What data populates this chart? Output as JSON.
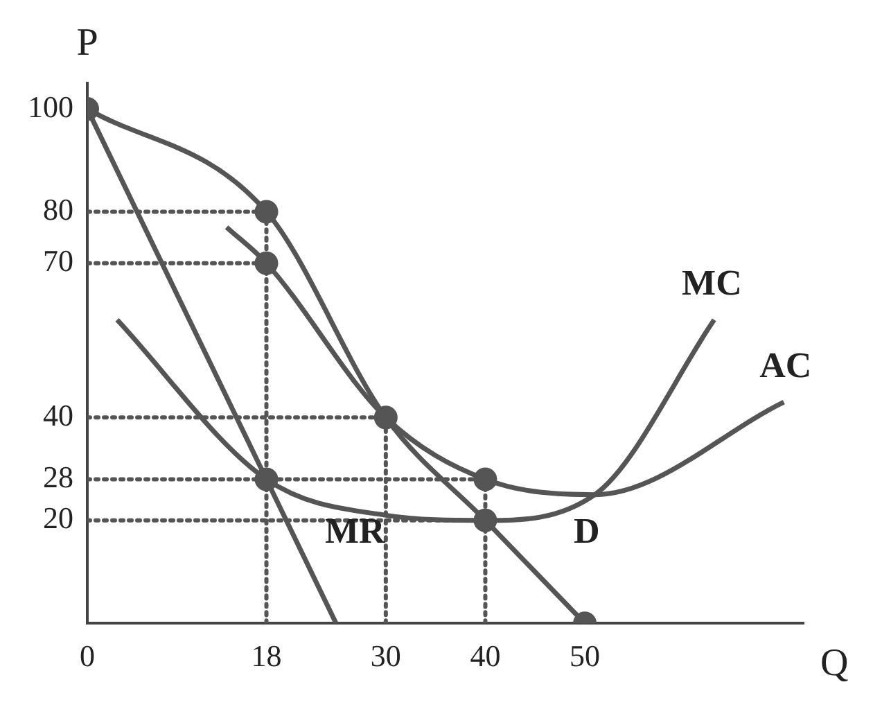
{
  "chart_data": {
    "type": "line",
    "xlabel": "Q",
    "ylabel": "P",
    "xlim": [
      0,
      72
    ],
    "ylim": [
      0,
      105
    ],
    "xticks": [
      0,
      18,
      30,
      40,
      50
    ],
    "yticks": [
      20,
      28,
      40,
      70,
      80,
      100
    ],
    "grid": false,
    "legend": false,
    "marker": "none",
    "series": [
      {
        "name": "D",
        "color": "#555555",
        "x": [
          0,
          18,
          30,
          40,
          50
        ],
        "values": [
          100,
          80,
          40,
          20,
          0
        ]
      },
      {
        "name": "MR",
        "color": "#555555",
        "x": [
          0,
          18,
          25
        ],
        "values": [
          100,
          28,
          0
        ]
      },
      {
        "name": "MC",
        "color": "#555555",
        "x": [
          3,
          18,
          30,
          40,
          51,
          63
        ],
        "values": [
          59,
          28,
          21,
          20,
          25,
          59
        ]
      },
      {
        "name": "AC",
        "color": "#555555",
        "x": [
          14,
          18,
          30,
          40,
          51,
          70
        ],
        "values": [
          77,
          70,
          40,
          28,
          25,
          43
        ]
      },
      {
        "type": "scatter",
        "marker": "circle",
        "color": "#555555",
        "x": [
          0,
          18,
          18,
          18,
          30,
          40,
          40,
          50
        ],
        "values": [
          100,
          80,
          70,
          28,
          40,
          28,
          20,
          0
        ]
      },
      {
        "line_style": "dotted",
        "color": "#555555",
        "x": [
          0,
          18
        ],
        "values": [
          80,
          80
        ]
      },
      {
        "line_style": "dotted",
        "color": "#555555",
        "x": [
          0,
          18
        ],
        "values": [
          70,
          70
        ]
      },
      {
        "line_style": "dotted",
        "color": "#555555",
        "x": [
          0,
          30
        ],
        "values": [
          40,
          40
        ]
      },
      {
        "line_style": "dotted",
        "color": "#555555",
        "x": [
          0,
          40
        ],
        "values": [
          28,
          28
        ]
      },
      {
        "line_style": "dotted",
        "color": "#555555",
        "x": [
          0,
          40
        ],
        "values": [
          20,
          20
        ]
      },
      {
        "line_style": "dotted",
        "color": "#555555",
        "x": [
          18,
          18
        ],
        "values": [
          0,
          80
        ]
      },
      {
        "line_style": "dotted",
        "color": "#555555",
        "x": [
          30,
          30
        ],
        "values": [
          0,
          40
        ]
      },
      {
        "line_style": "dotted",
        "color": "#555555",
        "x": [
          40,
          40
        ],
        "values": [
          0,
          28
        ]
      }
    ]
  }
}
